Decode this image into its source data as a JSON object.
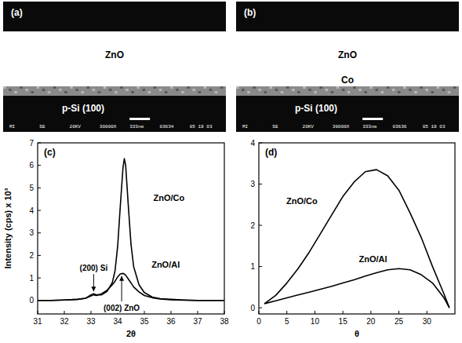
{
  "panels": [
    {
      "label": "(a)",
      "layers": [
        "ZnO",
        "p-Si (100)"
      ],
      "info": [
        "MI",
        "SE",
        "20KV",
        "30000X",
        "333nm",
        "03634",
        "05 19 03"
      ]
    },
    {
      "label": "(b)",
      "layers": [
        "ZnO",
        "Co",
        "p-Si (100)"
      ],
      "info": [
        "MI",
        "SE",
        "20KV",
        "30000X",
        "333nm",
        "03636",
        "05 19 03"
      ]
    }
  ],
  "chart_data": [
    {
      "type": "line",
      "title": "(c)",
      "x_label": "2θ",
      "y_label": "Intensity (cps) x 10³",
      "x": [
        31,
        31.5,
        32,
        32.5,
        32.8,
        33.0,
        33.1,
        33.2,
        33.4,
        33.6,
        33.8,
        33.9,
        34.0,
        34.1,
        34.2,
        34.25,
        34.3,
        34.4,
        34.5,
        34.6,
        34.8,
        35.0,
        35.3,
        35.6,
        36,
        36.5,
        37,
        37.5,
        38
      ],
      "series": [
        {
          "name": "ZnO/Co",
          "color": "#000000",
          "values": [
            0,
            0,
            0.02,
            0.05,
            0.1,
            0.25,
            0.3,
            0.25,
            0.25,
            0.4,
            0.8,
            1.3,
            2.4,
            4.2,
            5.9,
            6.3,
            6.0,
            4.2,
            2.5,
            1.5,
            0.7,
            0.35,
            0.15,
            0.08,
            0.05,
            0.02,
            0,
            0,
            0
          ]
        },
        {
          "name": "ZnO/Al",
          "color": "#000000",
          "values": [
            0,
            0,
            0.02,
            0.05,
            0.1,
            0.2,
            0.25,
            0.22,
            0.3,
            0.45,
            0.7,
            0.85,
            1.05,
            1.18,
            1.2,
            1.18,
            1.12,
            0.95,
            0.78,
            0.6,
            0.38,
            0.22,
            0.12,
            0.06,
            0.03,
            0.01,
            0,
            0,
            0
          ]
        }
      ],
      "annotations": [
        {
          "text": "(200) Si",
          "x": 33.1
        },
        {
          "text": "(002) ZnO",
          "x": 34.15
        }
      ],
      "xlim": [
        31,
        38
      ],
      "xticks": [
        31,
        32,
        33,
        34,
        35,
        36,
        37,
        38
      ],
      "ylim": [
        -0.6,
        7
      ],
      "yticks": [
        0,
        1,
        2,
        3,
        4,
        5,
        6,
        7
      ],
      "grid": false
    },
    {
      "type": "line",
      "title": "(d)",
      "x_label": "θ",
      "x": [
        1,
        3,
        5,
        7,
        9,
        11,
        13,
        15,
        17,
        19,
        21,
        23,
        25,
        27,
        29,
        31,
        33,
        34
      ],
      "series": [
        {
          "name": "ZnO/Co",
          "color": "#000000",
          "values": [
            0.1,
            0.3,
            0.6,
            0.95,
            1.35,
            1.8,
            2.25,
            2.7,
            3.05,
            3.3,
            3.35,
            3.2,
            2.85,
            2.3,
            1.7,
            1.0,
            0.35,
            0
          ]
        },
        {
          "name": "ZnO/Al",
          "color": "#000000",
          "values": [
            0.1,
            0.17,
            0.24,
            0.31,
            0.38,
            0.45,
            0.52,
            0.6,
            0.68,
            0.77,
            0.85,
            0.92,
            0.95,
            0.92,
            0.8,
            0.6,
            0.25,
            0
          ]
        }
      ],
      "xlim": [
        0,
        35
      ],
      "xticks": [
        0,
        5,
        10,
        15,
        20,
        25,
        30
      ],
      "ylim": [
        -0.15,
        4
      ],
      "yticks": [
        0,
        1,
        2,
        3,
        4
      ],
      "grid": false
    }
  ]
}
